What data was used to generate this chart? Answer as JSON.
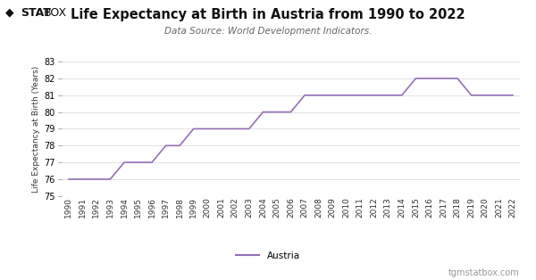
{
  "title": "Life Expectancy at Birth in Austria from 1990 to 2022",
  "subtitle": "Data Source: World Development Indicators.",
  "ylabel": "Life Expectancy at Birth (Years)",
  "legend_label": "Austria",
  "watermark": "tgmstatbox.com",
  "line_color": "#9370b8",
  "bg_color": "#ffffff",
  "grid_color": "#dddddd",
  "ylim": [
    75,
    83
  ],
  "yticks": [
    75,
    76,
    77,
    78,
    79,
    80,
    81,
    82,
    83
  ],
  "years": [
    1990,
    1991,
    1992,
    1993,
    1994,
    1995,
    1996,
    1997,
    1998,
    1999,
    2000,
    2001,
    2002,
    2003,
    2004,
    2005,
    2006,
    2007,
    2008,
    2009,
    2010,
    2011,
    2012,
    2013,
    2014,
    2015,
    2016,
    2017,
    2018,
    2019,
    2020,
    2021,
    2022
  ],
  "values": [
    76.0,
    76.0,
    76.0,
    76.0,
    77.0,
    77.0,
    77.0,
    78.0,
    78.0,
    79.0,
    79.0,
    79.0,
    79.0,
    79.0,
    80.0,
    80.0,
    80.0,
    81.0,
    81.0,
    81.0,
    81.0,
    81.0,
    81.0,
    81.0,
    81.0,
    82.0,
    82.0,
    82.0,
    82.0,
    81.0,
    81.0,
    81.0,
    81.0
  ],
  "title_fontsize": 10.5,
  "subtitle_fontsize": 7.5,
  "ylabel_fontsize": 6.5,
  "ytick_fontsize": 7,
  "xtick_fontsize": 6.5,
  "watermark_fontsize": 7,
  "legend_fontsize": 7.5
}
